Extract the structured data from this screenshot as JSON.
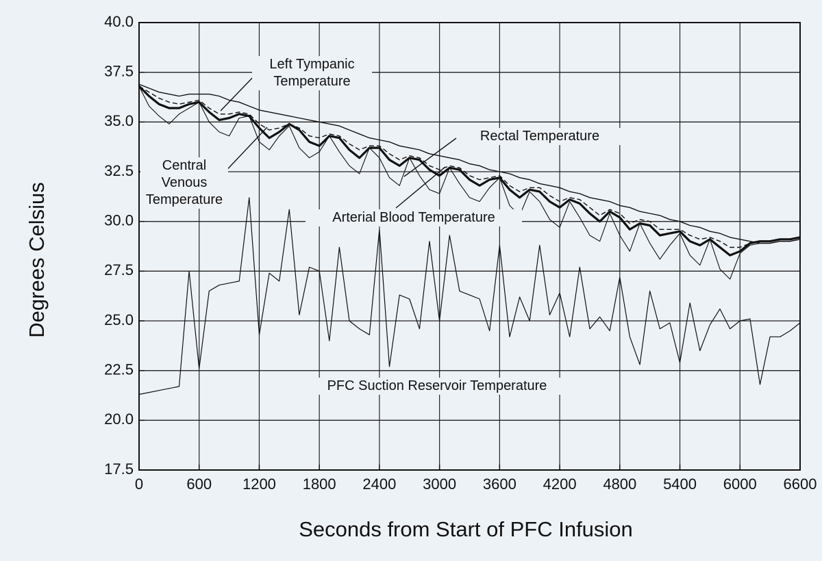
{
  "chart_data": {
    "type": "line",
    "xlabel": "Seconds from Start of PFC Infusion",
    "ylabel": "Degrees Celsius",
    "xlim": [
      0,
      6600
    ],
    "xticks": [
      0,
      600,
      1200,
      1800,
      2400,
      3000,
      3600,
      4200,
      4800,
      5400,
      6000,
      6600
    ],
    "ylim": [
      17.5,
      40
    ],
    "yticks": [
      17.5,
      {
        "value": 20,
        "label": "20.0"
      },
      22.5,
      {
        "value": 25,
        "label": "25.0"
      },
      27.5,
      {
        "value": 30,
        "label": "30.0"
      },
      32.5,
      {
        "value": 35,
        "label": "35.0"
      },
      37.5,
      {
        "value": 40,
        "label": "40.0"
      }
    ],
    "grid": true,
    "x": [
      0,
      100,
      200,
      300,
      400,
      500,
      600,
      700,
      800,
      900,
      1000,
      1100,
      1200,
      1300,
      1400,
      1500,
      1600,
      1700,
      1800,
      1900,
      2000,
      2100,
      2200,
      2300,
      2400,
      2500,
      2600,
      2700,
      2800,
      2900,
      3000,
      3100,
      3200,
      3300,
      3400,
      3500,
      3600,
      3700,
      3800,
      3900,
      4000,
      4100,
      4200,
      4300,
      4400,
      4500,
      4600,
      4700,
      4800,
      4900,
      5000,
      5100,
      5200,
      5300,
      5400,
      5500,
      5600,
      5700,
      5800,
      5900,
      6000,
      6100,
      6200,
      6300,
      6400,
      6500,
      6600
    ],
    "series": [
      {
        "name": "Left Tympanic Temperature",
        "color": "#111111",
        "values": [
          36.9,
          36.7,
          36.5,
          36.4,
          36.3,
          36.4,
          36.4,
          36.4,
          36.3,
          36.1,
          36.0,
          35.8,
          35.6,
          35.5,
          35.4,
          35.3,
          35.2,
          35.1,
          35.0,
          34.9,
          34.8,
          34.6,
          34.4,
          34.2,
          34.1,
          34.0,
          33.8,
          33.7,
          33.6,
          33.4,
          33.3,
          33.2,
          33.1,
          32.9,
          32.8,
          32.6,
          32.5,
          32.4,
          32.2,
          32.1,
          31.9,
          31.8,
          31.7,
          31.5,
          31.4,
          31.2,
          31.1,
          31.0,
          30.8,
          30.7,
          30.5,
          30.4,
          30.3,
          30.1,
          30.0,
          29.8,
          29.7,
          29.5,
          29.4,
          29.2,
          29.1,
          29.0,
          28.9,
          28.9,
          29.0,
          29.0,
          29.1
        ]
      },
      {
        "name": "Rectal Temperature",
        "color": "#111111",
        "values": [
          36.8,
          36.5,
          36.2,
          36.0,
          35.9,
          36.0,
          36.1,
          35.7,
          35.4,
          35.4,
          35.5,
          35.4,
          34.9,
          34.6,
          34.7,
          34.9,
          34.7,
          34.3,
          34.2,
          34.4,
          34.3,
          33.9,
          33.6,
          33.8,
          33.8,
          33.4,
          33.1,
          33.3,
          33.2,
          32.8,
          32.6,
          32.8,
          32.7,
          32.3,
          32.1,
          32.2,
          32.3,
          31.8,
          31.5,
          31.7,
          31.7,
          31.3,
          31.0,
          31.2,
          31.1,
          30.7,
          30.3,
          30.6,
          30.4,
          29.9,
          30.1,
          30.0,
          29.6,
          29.6,
          29.6,
          29.3,
          29.1,
          29.2,
          29.0,
          28.7,
          28.7,
          28.9,
          29.0,
          29.0,
          29.1,
          29.1,
          29.2
        ]
      },
      {
        "name": "Central Venous Temperature",
        "color": "#111111",
        "values": [
          36.8,
          35.8,
          35.3,
          34.9,
          35.4,
          35.7,
          36.0,
          35.0,
          34.5,
          34.3,
          35.2,
          35.3,
          34.0,
          33.6,
          34.3,
          34.8,
          33.7,
          33.2,
          33.5,
          34.3,
          33.5,
          32.8,
          32.4,
          33.7,
          33.2,
          32.2,
          31.8,
          33.2,
          32.3,
          31.6,
          31.4,
          32.7,
          31.9,
          31.2,
          31.0,
          31.7,
          32.2,
          30.8,
          30.3,
          31.5,
          31.0,
          30.1,
          29.7,
          31.0,
          30.2,
          29.3,
          29.0,
          30.4,
          29.3,
          28.5,
          29.9,
          28.9,
          28.1,
          28.8,
          29.4,
          28.3,
          27.8,
          29.1,
          27.6,
          27.1,
          28.4,
          28.8,
          28.9,
          28.9,
          29.0,
          29.0,
          29.1
        ]
      },
      {
        "name": "Arterial Blood Temperature",
        "color": "#111111",
        "values": [
          36.8,
          36.3,
          35.9,
          35.7,
          35.7,
          35.9,
          36.0,
          35.5,
          35.1,
          35.2,
          35.4,
          35.3,
          34.7,
          34.2,
          34.5,
          34.9,
          34.6,
          34.0,
          33.8,
          34.3,
          34.2,
          33.6,
          33.2,
          33.7,
          33.7,
          33.1,
          32.8,
          33.2,
          33.1,
          32.6,
          32.3,
          32.7,
          32.6,
          32.1,
          31.8,
          32.1,
          32.2,
          31.6,
          31.2,
          31.6,
          31.5,
          31.0,
          30.7,
          31.1,
          30.9,
          30.4,
          30.0,
          30.5,
          30.2,
          29.6,
          29.9,
          29.8,
          29.3,
          29.4,
          29.5,
          29.0,
          28.8,
          29.1,
          28.7,
          28.3,
          28.5,
          28.9,
          29.0,
          29.0,
          29.1,
          29.1,
          29.2
        ]
      },
      {
        "name": "PFC Suction Reservoir Temperature",
        "color": "#111111",
        "values": [
          21.3,
          21.4,
          21.5,
          21.6,
          21.7,
          27.5,
          22.6,
          26.5,
          26.8,
          26.9,
          27.0,
          31.2,
          24.3,
          27.4,
          27.0,
          30.6,
          25.3,
          27.7,
          27.5,
          24.0,
          28.7,
          25.0,
          24.6,
          24.3,
          29.6,
          22.7,
          26.3,
          26.1,
          24.6,
          29.0,
          25.0,
          29.3,
          26.5,
          26.3,
          26.1,
          24.5,
          28.8,
          24.2,
          26.2,
          25.0,
          28.8,
          25.3,
          26.4,
          24.2,
          27.7,
          24.6,
          25.2,
          24.5,
          27.2,
          24.2,
          22.8,
          26.5,
          24.6,
          24.9,
          22.9,
          25.9,
          23.5,
          24.8,
          25.6,
          24.6,
          25.0,
          25.1,
          21.8,
          24.2,
          24.2,
          24.5,
          24.9
        ]
      }
    ]
  }
}
